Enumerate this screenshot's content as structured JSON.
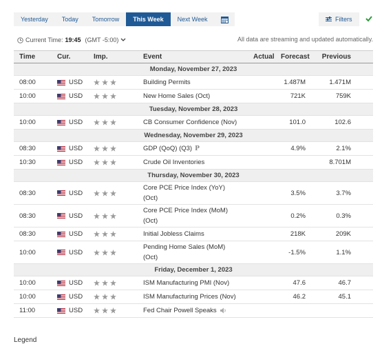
{
  "tabs": [
    "Yesterday",
    "Today",
    "Tomorrow",
    "This Week",
    "Next Week"
  ],
  "active_tab": 3,
  "filters": "Filters",
  "current_time": {
    "label": "Current Time:",
    "time": "19:45",
    "zone": "(GMT -5:00)"
  },
  "notice": "All data are streaming and updated automatically.",
  "table": {
    "headers": [
      "Time",
      "Cur.",
      "Imp.",
      "Event",
      "Actual",
      "Forecast",
      "Previous"
    ],
    "groups": [
      {
        "date": "Monday, November 27, 2023",
        "rows": [
          {
            "time": "08:00",
            "currency": "USD",
            "event": [
              "Building Permits"
            ],
            "forecast": "1.487M",
            "previous": "1.471M"
          },
          {
            "time": "10:00",
            "currency": "USD",
            "event": [
              "New Home Sales (Oct)"
            ],
            "forecast": "721K",
            "previous": "759K"
          }
        ]
      },
      {
        "date": "Tuesday, November 28, 2023",
        "rows": [
          {
            "time": "10:00",
            "currency": "USD",
            "event": [
              "CB Consumer Confidence (Nov)"
            ],
            "forecast": "101.0",
            "previous": "102.6"
          }
        ]
      },
      {
        "date": "Wednesday, November 29, 2023",
        "rows": [
          {
            "time": "08:30",
            "currency": "USD",
            "event": [
              "GDP (QoQ) (Q3)"
            ],
            "badge": "P",
            "forecast": "4.9%",
            "previous": "2.1%"
          },
          {
            "time": "10:30",
            "currency": "USD",
            "event": [
              "Crude Oil Inventories"
            ],
            "previous": "8.701M"
          }
        ]
      },
      {
        "date": "Thursday, November 30, 2023",
        "rows": [
          {
            "time": "08:30",
            "currency": "USD",
            "event": [
              "Core PCE Price Index (YoY)",
              "(Oct)"
            ],
            "forecast": "3.5%",
            "previous": "3.7%"
          },
          {
            "time": "08:30",
            "currency": "USD",
            "event": [
              "Core PCE Price Index (MoM)",
              "(Oct)"
            ],
            "forecast": "0.2%",
            "previous": "0.3%"
          },
          {
            "time": "08:30",
            "currency": "USD",
            "event": [
              "Initial Jobless Claims"
            ],
            "forecast": "218K",
            "previous": "209K"
          },
          {
            "time": "10:00",
            "currency": "USD",
            "event": [
              "Pending Home Sales (MoM)",
              "(Oct)"
            ],
            "forecast": "-1.5%",
            "previous": "1.1%"
          }
        ]
      },
      {
        "date": "Friday, December 1, 2023",
        "rows": [
          {
            "time": "10:00",
            "currency": "USD",
            "event": [
              "ISM Manufacturing PMI (Nov)"
            ],
            "forecast": "47.6",
            "previous": "46.7"
          },
          {
            "time": "10:00",
            "currency": "USD",
            "event": [
              "ISM Manufacturing Prices (Nov)"
            ],
            "forecast": "46.2",
            "previous": "45.1"
          },
          {
            "time": "11:00",
            "currency": "USD",
            "event": [
              "Fed Chair Powell Speaks"
            ],
            "has_audio": true
          }
        ]
      }
    ]
  },
  "legend": "Legend"
}
